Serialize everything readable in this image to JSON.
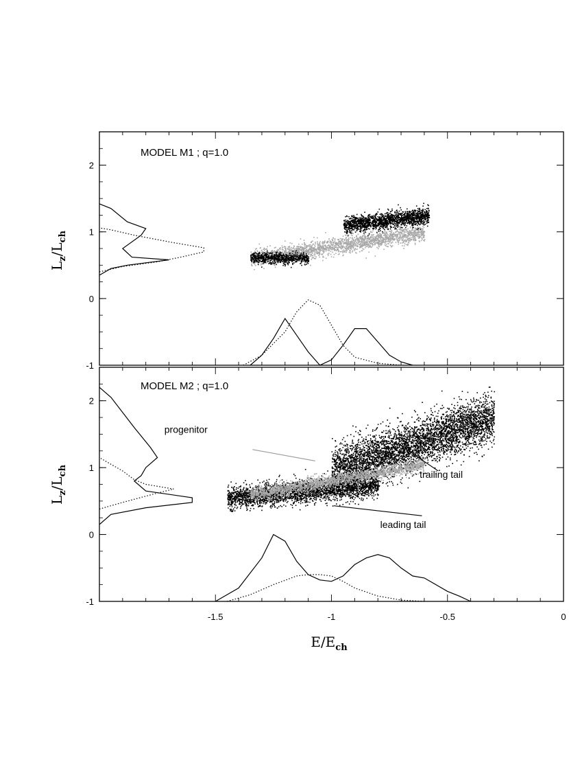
{
  "chart_data": [
    {
      "type": "scatter",
      "title": "MODEL M1 ; q=1.0",
      "xlabel": "E/E_ch",
      "ylabel": "L_z/L_ch",
      "xlim": [
        -2.0,
        0.0
      ],
      "ylim": [
        -1.0,
        2.5
      ],
      "y_ticks": [
        -1,
        0,
        1,
        2
      ],
      "y_tick_labels": [
        "-1",
        "0",
        "1",
        "2"
      ],
      "colors": {
        "tails": "#000000",
        "progenitor": "#a8a8a8",
        "axes": "#000000"
      },
      "scatter_regions": [
        {
          "name": "progenitor",
          "color": "#a8a8a8",
          "x_range": [
            -1.35,
            -0.6
          ],
          "y_at_xmin": 0.6,
          "y_at_xmax": 1.0,
          "spread": 0.12,
          "count": 2200
        },
        {
          "name": "trailing tail",
          "color": "#000000",
          "x_range": [
            -0.95,
            -0.58
          ],
          "y_at_xmin": 1.1,
          "y_at_xmax": 1.25,
          "spread": 0.12,
          "count": 1600
        },
        {
          "name": "leading tail",
          "color": "#000000",
          "x_range": [
            -1.35,
            -1.1
          ],
          "y_at_xmin": 0.62,
          "y_at_xmax": 0.6,
          "spread": 0.08,
          "count": 700
        }
      ],
      "marginal_E": {
        "solid": [
          [
            -1.35,
            -1.0
          ],
          [
            -1.3,
            -0.85
          ],
          [
            -1.25,
            -0.6
          ],
          [
            -1.2,
            -0.3
          ],
          [
            -1.15,
            -0.55
          ],
          [
            -1.1,
            -0.8
          ],
          [
            -1.05,
            -1.0
          ],
          [
            -1.0,
            -0.92
          ],
          [
            -0.95,
            -0.7
          ],
          [
            -0.9,
            -0.45
          ],
          [
            -0.85,
            -0.45
          ],
          [
            -0.8,
            -0.65
          ],
          [
            -0.75,
            -0.85
          ],
          [
            -0.7,
            -0.95
          ],
          [
            -0.65,
            -1.0
          ]
        ],
        "dotted": [
          [
            -1.38,
            -1.0
          ],
          [
            -1.3,
            -0.85
          ],
          [
            -1.2,
            -0.5
          ],
          [
            -1.15,
            -0.2
          ],
          [
            -1.1,
            -0.02
          ],
          [
            -1.05,
            -0.1
          ],
          [
            -1.0,
            -0.4
          ],
          [
            -0.95,
            -0.7
          ],
          [
            -0.9,
            -0.88
          ],
          [
            -0.8,
            -0.97
          ],
          [
            -0.7,
            -1.0
          ]
        ]
      },
      "marginal_L": {
        "solid": [
          [
            -2.0,
            0.35
          ],
          [
            -1.95,
            0.45
          ],
          [
            -1.88,
            0.5
          ],
          [
            -1.7,
            0.58
          ],
          [
            -1.86,
            0.62
          ],
          [
            -1.9,
            0.75
          ],
          [
            -1.82,
            0.95
          ],
          [
            -1.8,
            1.05
          ],
          [
            -1.88,
            1.15
          ],
          [
            -1.95,
            1.35
          ],
          [
            -2.0,
            1.42
          ]
        ],
        "dotted": [
          [
            -2.0,
            0.4
          ],
          [
            -1.9,
            0.48
          ],
          [
            -1.75,
            0.55
          ],
          [
            -1.65,
            0.62
          ],
          [
            -1.55,
            0.7
          ],
          [
            -1.55,
            0.76
          ],
          [
            -1.7,
            0.85
          ],
          [
            -1.85,
            0.95
          ],
          [
            -1.95,
            1.03
          ],
          [
            -2.0,
            1.06
          ]
        ]
      },
      "annotations": []
    },
    {
      "type": "scatter",
      "title": "MODEL M2 ; q=1.0",
      "xlabel": "E/E_ch",
      "ylabel": "L_z/L_ch",
      "xlim": [
        -2.0,
        0.0
      ],
      "ylim": [
        -1.0,
        2.5
      ],
      "x_ticks": [
        -1.5,
        -1.0,
        -0.5,
        0.0
      ],
      "x_tick_labels": [
        "-1.5",
        "-1",
        "-0.5",
        "0"
      ],
      "y_ticks": [
        -1,
        0,
        1,
        2
      ],
      "y_tick_labels": [
        "-1",
        "0",
        "1",
        "2"
      ],
      "colors": {
        "tails": "#000000",
        "progenitor": "#a8a8a8",
        "axes": "#000000"
      },
      "scatter_regions": [
        {
          "name": "trailing tail",
          "color": "#000000",
          "x_range": [
            -1.0,
            -0.3
          ],
          "y_at_xmin": 0.95,
          "y_at_xmax": 1.75,
          "spread": 0.35,
          "count": 4500
        },
        {
          "name": "leading tail",
          "color": "#000000",
          "x_range": [
            -1.45,
            -0.8
          ],
          "y_at_xmin": 0.55,
          "y_at_xmax": 0.75,
          "spread": 0.17,
          "count": 2800
        },
        {
          "name": "progenitor",
          "color": "#a8a8a8",
          "x_range": [
            -1.35,
            -0.6
          ],
          "y_at_xmin": 0.6,
          "y_at_xmax": 1.05,
          "spread": 0.1,
          "count": 2000
        }
      ],
      "marginal_E": {
        "solid": [
          [
            -1.5,
            -1.0
          ],
          [
            -1.4,
            -0.8
          ],
          [
            -1.3,
            -0.35
          ],
          [
            -1.25,
            0.0
          ],
          [
            -1.2,
            -0.1
          ],
          [
            -1.15,
            -0.4
          ],
          [
            -1.1,
            -0.6
          ],
          [
            -1.05,
            -0.68
          ],
          [
            -1.0,
            -0.7
          ],
          [
            -0.95,
            -0.62
          ],
          [
            -0.9,
            -0.45
          ],
          [
            -0.85,
            -0.35
          ],
          [
            -0.8,
            -0.3
          ],
          [
            -0.75,
            -0.35
          ],
          [
            -0.7,
            -0.5
          ],
          [
            -0.65,
            -0.62
          ],
          [
            -0.6,
            -0.65
          ],
          [
            -0.55,
            -0.75
          ],
          [
            -0.5,
            -0.85
          ],
          [
            -0.45,
            -0.92
          ],
          [
            -0.4,
            -1.0
          ]
        ],
        "dotted": [
          [
            -1.45,
            -1.0
          ],
          [
            -1.35,
            -0.9
          ],
          [
            -1.25,
            -0.75
          ],
          [
            -1.15,
            -0.62
          ],
          [
            -1.1,
            -0.6
          ],
          [
            -1.05,
            -0.6
          ],
          [
            -1.0,
            -0.62
          ],
          [
            -0.95,
            -0.7
          ],
          [
            -0.9,
            -0.8
          ],
          [
            -0.8,
            -0.92
          ],
          [
            -0.7,
            -0.98
          ],
          [
            -0.6,
            -1.0
          ]
        ]
      },
      "marginal_L": {
        "solid": [
          [
            -2.0,
            0.15
          ],
          [
            -1.95,
            0.3
          ],
          [
            -1.8,
            0.4
          ],
          [
            -1.6,
            0.48
          ],
          [
            -1.6,
            0.55
          ],
          [
            -1.8,
            0.65
          ],
          [
            -1.85,
            0.8
          ],
          [
            -1.82,
            0.88
          ],
          [
            -1.8,
            1.0
          ],
          [
            -1.75,
            1.15
          ],
          [
            -1.78,
            1.3
          ],
          [
            -1.85,
            1.6
          ],
          [
            -1.95,
            2.05
          ],
          [
            -2.0,
            2.2
          ]
        ],
        "dotted": [
          [
            -2.0,
            0.38
          ],
          [
            -1.9,
            0.48
          ],
          [
            -1.75,
            0.62
          ],
          [
            -1.68,
            0.68
          ],
          [
            -1.8,
            0.75
          ],
          [
            -1.85,
            0.82
          ],
          [
            -1.9,
            0.95
          ],
          [
            -1.95,
            1.05
          ],
          [
            -2.0,
            1.15
          ]
        ]
      },
      "annotations": [
        {
          "text": "progenitor",
          "color": "#9a9a9a",
          "at": [
            -1.72,
            1.52
          ],
          "arrow_from": [
            -1.34,
            1.27
          ],
          "arrow_to": [
            -1.07,
            1.1
          ]
        },
        {
          "text": "trailing tail",
          "color": "#000000",
          "at": [
            -0.62,
            0.85
          ],
          "arrow_from": [
            -0.54,
            0.95
          ],
          "arrow_to": [
            -0.71,
            1.35
          ]
        },
        {
          "text": "leading tail",
          "color": "#000000",
          "at": [
            -0.79,
            0.1
          ],
          "arrow_from": [
            -0.61,
            0.28
          ],
          "arrow_to": [
            -0.99,
            0.43
          ]
        }
      ]
    }
  ]
}
